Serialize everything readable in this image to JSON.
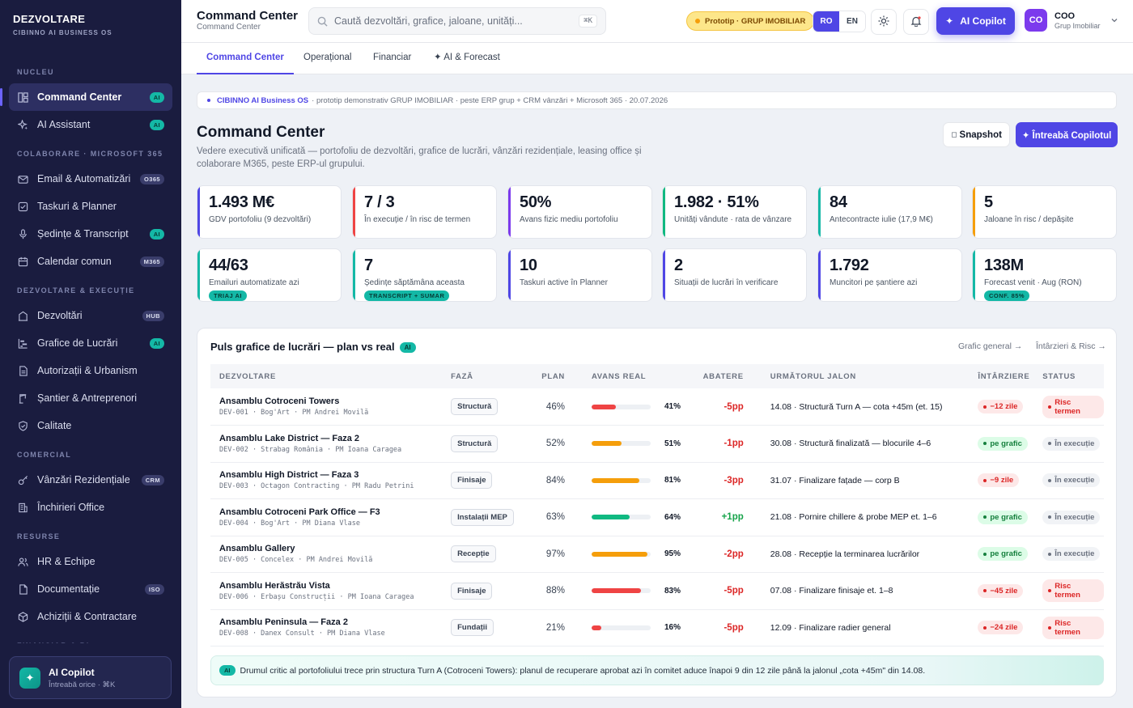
{
  "brand": {
    "title": "DEZVOLTARE",
    "subtitle": "CIBINNO AI BUSINESS OS"
  },
  "sidebar": {
    "sections": [
      {
        "label": "NUCLEU",
        "items": [
          {
            "label": "Command Center",
            "badge": "AI",
            "icon": "dashboard-icon",
            "active": true
          },
          {
            "label": "AI Assistant",
            "badge": "AI",
            "icon": "sparkle-icon"
          }
        ]
      },
      {
        "label": "COLABORARE · MICROSOFT 365",
        "items": [
          {
            "label": "Email & Automatizări",
            "badge": "O365",
            "icon": "mail-icon"
          },
          {
            "label": "Taskuri & Planner",
            "badge": "",
            "icon": "checkbox-icon"
          },
          {
            "label": "Ședințe & Transcript",
            "badge": "AI",
            "icon": "microphone-icon"
          },
          {
            "label": "Calendar comun",
            "badge": "M365",
            "icon": "calendar-icon"
          }
        ]
      },
      {
        "label": "DEZVOLTARE & EXECUȚIE",
        "items": [
          {
            "label": "Dezvoltări",
            "badge": "HUB",
            "icon": "building-icon"
          },
          {
            "label": "Grafice de Lucrări",
            "badge": "AI",
            "icon": "gantt-icon"
          },
          {
            "label": "Autorizații & Urbanism",
            "badge": "",
            "icon": "document-icon"
          },
          {
            "label": "Șantier & Antreprenori",
            "badge": "",
            "icon": "crane-icon"
          },
          {
            "label": "Calitate",
            "badge": "",
            "icon": "shield-icon"
          }
        ]
      },
      {
        "label": "COMERCIAL",
        "items": [
          {
            "label": "Vânzări Rezidențiale",
            "badge": "CRM",
            "icon": "key-icon"
          },
          {
            "label": "Închirieri Office",
            "badge": "",
            "icon": "office-icon"
          }
        ]
      },
      {
        "label": "RESURSE",
        "items": [
          {
            "label": "HR & Echipe",
            "badge": "",
            "icon": "users-icon"
          },
          {
            "label": "Documentație",
            "badge": "ISO",
            "icon": "file-icon"
          },
          {
            "label": "Achiziții & Contractare",
            "badge": "",
            "icon": "box-icon"
          }
        ]
      },
      {
        "label": "FINANCIAR & BI",
        "items": []
      }
    ],
    "copilot": {
      "title": "AI Copilot",
      "subtitle": "Întreabă orice · ⌘K"
    }
  },
  "topbar": {
    "title": "Command Center",
    "subtitle": "Command Center",
    "search_placeholder": "Caută dezvoltări, grafice, jaloane, unități...",
    "search_kbd": "⌘K",
    "proto_badge": "Prototip · GRUP IMOBILIAR",
    "lang": [
      "RO",
      "EN"
    ],
    "ai_button": "AI Copilot",
    "user": {
      "initials": "CO",
      "name": "COO",
      "org": "Grup Imobiliar"
    }
  },
  "tabs": [
    "Command Center",
    "Operațional",
    "Financiar",
    "✦ AI & Forecast"
  ],
  "banner": {
    "title": "CIBINNO AI Business OS",
    "text": "· prototip demonstrativ GRUP IMOBILIAR · peste ERP grup + CRM vânzări + Microsoft 365 · 20.07.2026"
  },
  "page": {
    "title": "Command Center",
    "subtitle": "Vedere executivă unificată — portofoliu de dezvoltări, grafice de lucrări, vânzări rezidențiale, leasing office și colaborare M365, peste ERP-ul grupului.",
    "snapshot": "Snapshot",
    "ask": "✦ Întreabă Copilotul"
  },
  "kpis": [
    {
      "value": "1.493 M€",
      "label": "GDV portofoliu (9 dezvoltări)",
      "badge": "",
      "color": "#4f46e5"
    },
    {
      "value": "7 / 3",
      "label": "În execuție / în risc de termen",
      "badge": "",
      "color": "#ef4444"
    },
    {
      "value": "50%",
      "label": "Avans fizic mediu portofoliu",
      "badge": "",
      "color": "#7c3aed"
    },
    {
      "value": "1.982 · 51%",
      "label": "Unități vândute · rata de vânzare",
      "badge": "",
      "color": "#10b981"
    },
    {
      "value": "84",
      "label": "Antecontracte iulie (17,9 M€)",
      "badge": "",
      "color": "#14b8a6"
    },
    {
      "value": "5",
      "label": "Jaloane în risc / depășite",
      "badge": "",
      "color": "#f59e0b"
    },
    {
      "value": "44/63",
      "label": "Emailuri automatizate azi",
      "badge": "TRIAJ AI",
      "color": "#14b8a6"
    },
    {
      "value": "7",
      "label": "Ședințe săptămâna aceasta",
      "badge": "TRANSCRIPT + SUMAR",
      "color": "#14b8a6"
    },
    {
      "value": "10",
      "label": "Taskuri active în Planner",
      "badge": "",
      "color": "#4f46e5"
    },
    {
      "value": "2",
      "label": "Situații de lucrări în verificare",
      "badge": "",
      "color": "#4f46e5"
    },
    {
      "value": "1.792",
      "label": "Muncitori pe șantiere azi",
      "badge": "",
      "color": "#4f46e5"
    },
    {
      "value": "138M",
      "label": "Forecast venit · Aug (RON)",
      "badge": "CONF. 85%",
      "color": "#14b8a6"
    }
  ],
  "panel": {
    "title": "Puls grafice de lucrări — plan vs real",
    "ai": "AI",
    "link1": "Grafic general →",
    "link2": "Întârzieri & Risc →",
    "headers": [
      "DEZVOLTARE",
      "FAZĂ",
      "PLAN",
      "AVANS REAL",
      "ABATERE",
      "URMĂTORUL JALON",
      "ÎNTÂRZIERE",
      "STATUS"
    ],
    "rows": [
      {
        "name": "Ansamblu Cotroceni Towers",
        "meta": "DEV-001 · Bog'Art · PM Andrei Movilă",
        "phase": "Structură",
        "plan": "46%",
        "real": "41%",
        "real_pct": 41,
        "bar_color": "#ef4444",
        "dev": "-5pp",
        "dev_color": "#dc2626",
        "milestone": "14.08 · Structură Turn A — cota +45m (et. 15)",
        "delay": "−12 zile",
        "delay_kind": "red",
        "status": "Risc termen",
        "status_kind": "red"
      },
      {
        "name": "Ansamblu Lake District — Faza 2",
        "meta": "DEV-002 · Strabag România · PM Ioana Caragea",
        "phase": "Structură",
        "plan": "52%",
        "real": "51%",
        "real_pct": 51,
        "bar_color": "#f59e0b",
        "dev": "-1pp",
        "dev_color": "#dc2626",
        "milestone": "30.08 · Structură finalizată — blocurile 4–6",
        "delay": "pe grafic",
        "delay_kind": "green",
        "status": "În execuție",
        "status_kind": "gray"
      },
      {
        "name": "Ansamblu High District — Faza 3",
        "meta": "DEV-003 · Octagon Contracting · PM Radu Petrini",
        "phase": "Finisaje",
        "plan": "84%",
        "real": "81%",
        "real_pct": 81,
        "bar_color": "#f59e0b",
        "dev": "-3pp",
        "dev_color": "#dc2626",
        "milestone": "31.07 · Finalizare fațade — corp B",
        "delay": "−9 zile",
        "delay_kind": "red",
        "status": "În execuție",
        "status_kind": "gray"
      },
      {
        "name": "Ansamblu Cotroceni Park Office — F3",
        "meta": "DEV-004 · Bog'Art · PM Diana Vlase",
        "phase": "Instalații MEP",
        "plan": "63%",
        "real": "64%",
        "real_pct": 64,
        "bar_color": "#10b981",
        "dev": "+1pp",
        "dev_color": "#16a34a",
        "milestone": "21.08 · Pornire chillere & probe MEP et. 1–6",
        "delay": "pe grafic",
        "delay_kind": "green",
        "status": "În execuție",
        "status_kind": "gray"
      },
      {
        "name": "Ansamblu Gallery",
        "meta": "DEV-005 · Concelex · PM Andrei Movilă",
        "phase": "Recepție",
        "plan": "97%",
        "real": "95%",
        "real_pct": 95,
        "bar_color": "#f59e0b",
        "dev": "-2pp",
        "dev_color": "#dc2626",
        "milestone": "28.08 · Recepție la terminarea lucrărilor",
        "delay": "pe grafic",
        "delay_kind": "green",
        "status": "În execuție",
        "status_kind": "gray"
      },
      {
        "name": "Ansamblu Herăstrău Vista",
        "meta": "DEV-006 · Erbașu Construcții · PM Ioana Caragea",
        "phase": "Finisaje",
        "plan": "88%",
        "real": "83%",
        "real_pct": 83,
        "bar_color": "#ef4444",
        "dev": "-5pp",
        "dev_color": "#dc2626",
        "milestone": "07.08 · Finalizare finisaje et. 1–8",
        "delay": "−45 zile",
        "delay_kind": "red",
        "status": "Risc termen",
        "status_kind": "red"
      },
      {
        "name": "Ansamblu Peninsula — Faza 2",
        "meta": "DEV-008 · Danex Consult · PM Diana Vlase",
        "phase": "Fundații",
        "plan": "21%",
        "real": "16%",
        "real_pct": 16,
        "bar_color": "#ef4444",
        "dev": "-5pp",
        "dev_color": "#dc2626",
        "milestone": "12.09 · Finalizare radier general",
        "delay": "−24 zile",
        "delay_kind": "red",
        "status": "Risc termen",
        "status_kind": "red"
      }
    ],
    "note_ai": "AI",
    "note": "Drumul critic al portofoliului trece prin structura Turn A (Cotroceni Towers): planul de recuperare aprobat azi în comitet aduce înapoi 9 din 12 zile până la jalonul „cota +45m\" din 14.08."
  }
}
